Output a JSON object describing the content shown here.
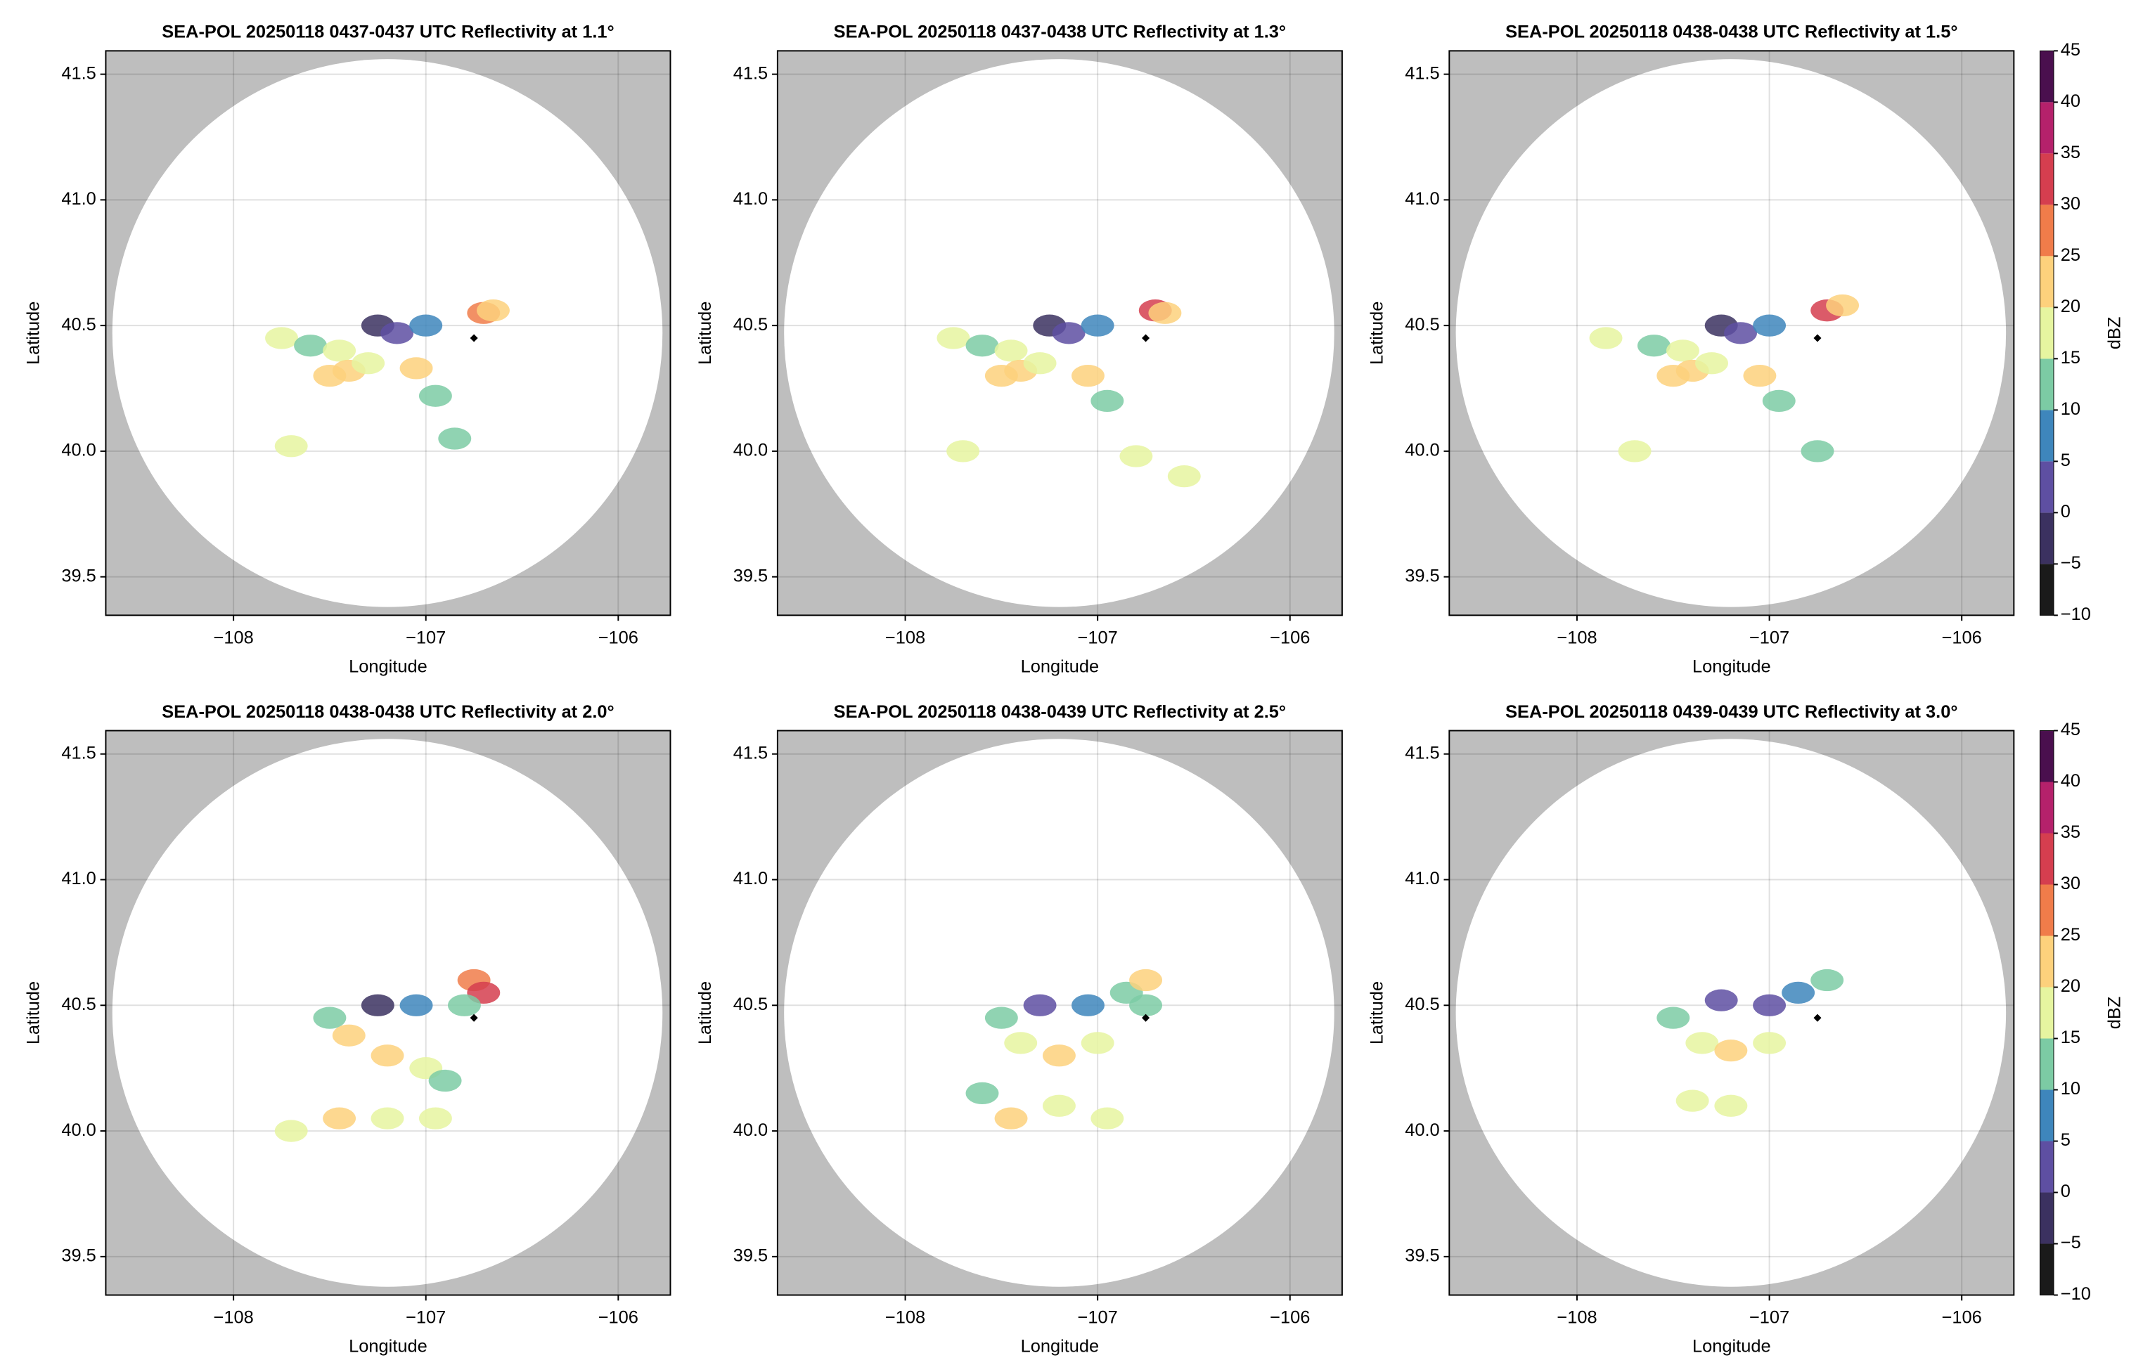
{
  "chart_data": [
    {
      "type": "radar",
      "title": "SEA-POL 20250118 0437-0437 UTC Reflectivity at 1.1°",
      "xlabel": "Longitude",
      "ylabel": "Latitude",
      "xlim": [
        -108.664,
        -105.729
      ],
      "ylim": [
        39.347,
        41.593
      ],
      "xticks": [
        {
          "value": -108,
          "label": "−108"
        },
        {
          "value": -107,
          "label": "−107"
        },
        {
          "value": -106,
          "label": "−106"
        }
      ],
      "yticks": [
        39.5,
        {
          "value": 40,
          "label": "40.0"
        },
        40.5,
        {
          "value": 41,
          "label": "41.0"
        },
        41.5
      ],
      "grid": true,
      "coverage": {
        "x": -107.2,
        "y": 40.47,
        "rx": 1.43,
        "ry": 1.09
      },
      "site": {
        "x": -106.75,
        "y": 40.45
      },
      "x": [
        -107.75,
        -107.6,
        -107.45,
        -107.4,
        -107.5,
        -107.3,
        -107.25,
        -107.15,
        -107.0,
        -107.05,
        -106.95,
        -106.7,
        -106.65,
        -107.7,
        -106.85
      ],
      "y": [
        40.45,
        40.42,
        40.4,
        40.32,
        40.3,
        40.35,
        40.5,
        40.47,
        40.5,
        40.33,
        40.22,
        40.55,
        40.56,
        40.02,
        40.05
      ],
      "values": [
        16,
        14,
        18,
        22,
        20,
        18,
        -2,
        3,
        6,
        22,
        12,
        28,
        22,
        16,
        14
      ]
    },
    {
      "type": "radar",
      "title": "SEA-POL 20250118 0437-0438 UTC Reflectivity at 1.3°",
      "xlabel": "Longitude",
      "ylabel": "Latitude",
      "xlim": [
        -108.664,
        -105.729
      ],
      "ylim": [
        39.347,
        41.593
      ],
      "xticks": [
        {
          "value": -108,
          "label": "−108"
        },
        {
          "value": -107,
          "label": "−107"
        },
        {
          "value": -106,
          "label": "−106"
        }
      ],
      "yticks": [
        39.5,
        {
          "value": 40,
          "label": "40.0"
        },
        40.5,
        {
          "value": 41,
          "label": "41.0"
        },
        41.5
      ],
      "grid": true,
      "coverage": {
        "x": -107.2,
        "y": 40.47,
        "rx": 1.43,
        "ry": 1.09
      },
      "site": {
        "x": -106.75,
        "y": 40.45
      },
      "x": [
        -107.75,
        -107.6,
        -107.45,
        -107.4,
        -107.5,
        -107.3,
        -107.25,
        -107.15,
        -107.0,
        -107.05,
        -106.95,
        -106.7,
        -106.65,
        -107.7,
        -106.8,
        -106.55
      ],
      "y": [
        40.45,
        40.42,
        40.4,
        40.32,
        40.3,
        40.35,
        40.5,
        40.47,
        40.5,
        40.3,
        40.2,
        40.56,
        40.55,
        40.0,
        39.98,
        39.9
      ],
      "values": [
        16,
        14,
        18,
        22,
        20,
        18,
        -2,
        3,
        6,
        24,
        12,
        30,
        22,
        17,
        16,
        17
      ]
    },
    {
      "type": "radar",
      "title": "SEA-POL 20250118 0438-0438 UTC Reflectivity at 1.5°",
      "xlabel": "Longitude",
      "ylabel": "Latitude",
      "xlim": [
        -108.664,
        -105.729
      ],
      "ylim": [
        39.347,
        41.593
      ],
      "xticks": [
        {
          "value": -108,
          "label": "−108"
        },
        {
          "value": -107,
          "label": "−107"
        },
        {
          "value": -106,
          "label": "−106"
        }
      ],
      "yticks": [
        39.5,
        {
          "value": 40,
          "label": "40.0"
        },
        40.5,
        {
          "value": 41,
          "label": "41.0"
        },
        41.5
      ],
      "grid": true,
      "coverage": {
        "x": -107.2,
        "y": 40.47,
        "rx": 1.43,
        "ry": 1.09
      },
      "site": {
        "x": -106.75,
        "y": 40.45
      },
      "x": [
        -107.85,
        -107.6,
        -107.45,
        -107.4,
        -107.5,
        -107.3,
        -107.25,
        -107.15,
        -107.0,
        -107.05,
        -106.95,
        -106.7,
        -106.62,
        -107.7,
        -106.75
      ],
      "y": [
        40.45,
        40.42,
        40.4,
        40.32,
        40.3,
        40.35,
        40.5,
        40.47,
        40.5,
        40.3,
        40.2,
        40.56,
        40.58,
        40.0,
        40.0
      ],
      "values": [
        16,
        14,
        18,
        22,
        20,
        18,
        -2,
        3,
        6,
        24,
        12,
        32,
        22,
        16,
        14
      ],
      "colorbar": {
        "label": "dBZ",
        "lim": [
          -10,
          45
        ],
        "ticks": [
          {
            "value": -10,
            "label": "−10"
          },
          {
            "value": -5,
            "label": "−5"
          },
          0,
          5,
          10,
          15,
          20,
          25,
          30,
          35,
          40,
          45
        ],
        "colors": [
          "#1a1a1a",
          "#3b3160",
          "#5e4fa2",
          "#3e86bc",
          "#7ccba4",
          "#e6f5a0",
          "#fdd17c",
          "#f07c4a",
          "#d53e4f",
          "#b5216b",
          "#4a0f4e"
        ]
      }
    },
    {
      "type": "radar",
      "title": "SEA-POL 20250118 0438-0438 UTC Reflectivity at 2.0°",
      "xlabel": "Longitude",
      "ylabel": "Latitude",
      "xlim": [
        -108.664,
        -105.729
      ],
      "ylim": [
        39.347,
        41.593
      ],
      "xticks": [
        {
          "value": -108,
          "label": "−108"
        },
        {
          "value": -107,
          "label": "−107"
        },
        {
          "value": -106,
          "label": "−106"
        }
      ],
      "yticks": [
        39.5,
        {
          "value": 40,
          "label": "40.0"
        },
        40.5,
        {
          "value": 41,
          "label": "41.0"
        },
        41.5
      ],
      "grid": true,
      "coverage": {
        "x": -107.2,
        "y": 40.47,
        "rx": 1.43,
        "ry": 1.09
      },
      "site": {
        "x": -106.75,
        "y": 40.45
      },
      "x": [
        -107.5,
        -107.4,
        -107.2,
        -107.0,
        -106.9,
        -107.25,
        -107.05,
        -106.75,
        -106.7,
        -106.8,
        -107.45,
        -107.2,
        -106.95,
        -107.7
      ],
      "y": [
        40.45,
        40.38,
        40.3,
        40.25,
        40.2,
        40.5,
        40.5,
        40.6,
        40.55,
        40.5,
        40.05,
        40.05,
        40.05,
        40.0
      ],
      "values": [
        14,
        20,
        22,
        18,
        14,
        -2,
        5,
        28,
        32,
        12,
        22,
        16,
        16,
        17
      ]
    },
    {
      "type": "radar",
      "title": "SEA-POL 20250118 0438-0439 UTC Reflectivity at 2.5°",
      "xlabel": "Longitude",
      "ylabel": "Latitude",
      "xlim": [
        -108.664,
        -105.729
      ],
      "ylim": [
        39.347,
        41.593
      ],
      "xticks": [
        {
          "value": -108,
          "label": "−108"
        },
        {
          "value": -107,
          "label": "−107"
        },
        {
          "value": -106,
          "label": "−106"
        }
      ],
      "yticks": [
        39.5,
        {
          "value": 40,
          "label": "40.0"
        },
        40.5,
        {
          "value": 41,
          "label": "41.0"
        },
        41.5
      ],
      "grid": true,
      "coverage": {
        "x": -107.2,
        "y": 40.47,
        "rx": 1.43,
        "ry": 1.09
      },
      "site": {
        "x": -106.75,
        "y": 40.45
      },
      "x": [
        -107.5,
        -107.4,
        -107.2,
        -107.0,
        -107.3,
        -107.05,
        -106.85,
        -106.75,
        -106.75,
        -107.45,
        -107.2,
        -106.95,
        -107.6
      ],
      "y": [
        40.45,
        40.35,
        40.3,
        40.35,
        40.5,
        40.5,
        40.55,
        40.6,
        40.5,
        40.05,
        40.1,
        40.05,
        40.15
      ],
      "values": [
        10,
        18,
        22,
        18,
        0,
        6,
        10,
        20,
        14,
        22,
        16,
        15,
        14
      ]
    },
    {
      "type": "radar",
      "title": "SEA-POL 20250118 0439-0439 UTC Reflectivity at 3.0°",
      "xlabel": "Longitude",
      "ylabel": "Latitude",
      "xlim": [
        -108.664,
        -105.729
      ],
      "ylim": [
        39.347,
        41.593
      ],
      "xticks": [
        {
          "value": -108,
          "label": "−108"
        },
        {
          "value": -107,
          "label": "−107"
        },
        {
          "value": -106,
          "label": "−106"
        }
      ],
      "yticks": [
        39.5,
        {
          "value": 40,
          "label": "40.0"
        },
        40.5,
        {
          "value": 41,
          "label": "41.0"
        },
        41.5
      ],
      "grid": true,
      "coverage": {
        "x": -107.2,
        "y": 40.47,
        "rx": 1.43,
        "ry": 1.09
      },
      "site": {
        "x": -106.75,
        "y": 40.45
      },
      "x": [
        -107.5,
        -107.35,
        -107.2,
        -107.0,
        -107.25,
        -107.0,
        -106.85,
        -106.7,
        -107.4,
        -107.2
      ],
      "y": [
        40.45,
        40.35,
        40.32,
        40.35,
        40.52,
        40.5,
        40.55,
        40.6,
        40.12,
        40.1
      ],
      "values": [
        10,
        16,
        22,
        16,
        0,
        4,
        8,
        10,
        16,
        17
      ],
      "colorbar": {
        "label": "dBZ",
        "lim": [
          -10,
          45
        ],
        "ticks": [
          {
            "value": -10,
            "label": "−10"
          },
          {
            "value": -5,
            "label": "−5"
          },
          0,
          5,
          10,
          15,
          20,
          25,
          30,
          35,
          40,
          45
        ],
        "colors": [
          "#1a1a1a",
          "#3b3160",
          "#5e4fa2",
          "#3e86bc",
          "#7ccba4",
          "#e6f5a0",
          "#fdd17c",
          "#f07c4a",
          "#d53e4f",
          "#b5216b",
          "#4a0f4e"
        ]
      }
    }
  ]
}
